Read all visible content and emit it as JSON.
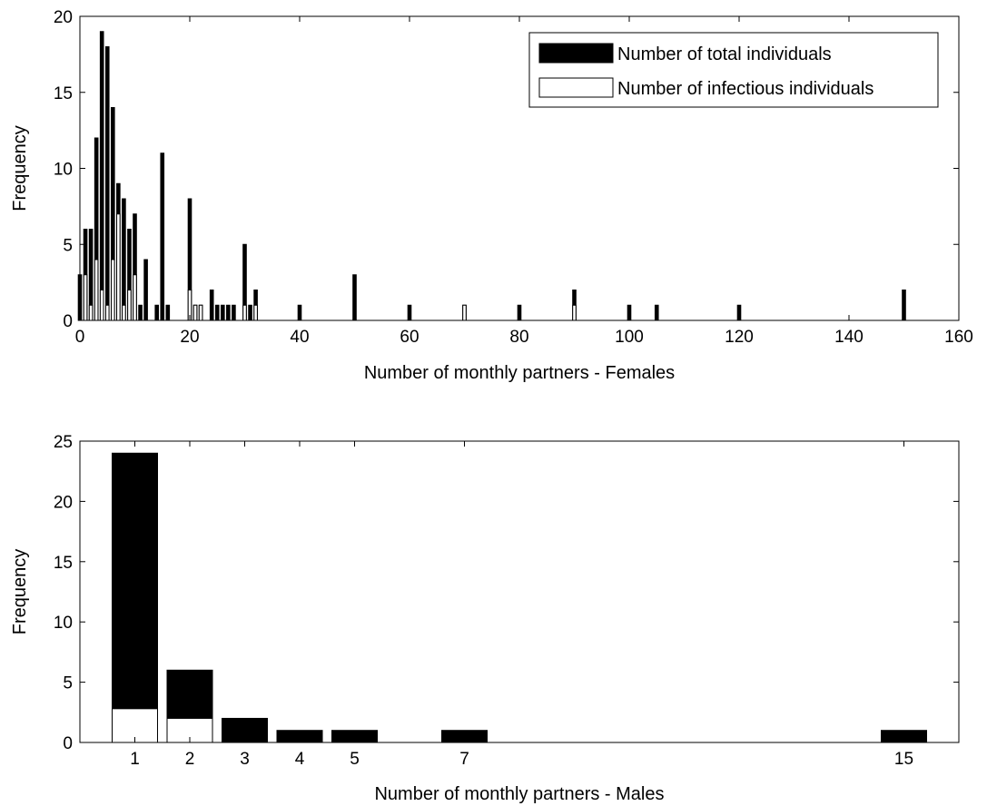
{
  "chart_data": [
    {
      "type": "bar",
      "title": "",
      "xlabel": "Number of monthly partners - Females",
      "ylabel": "Frequency",
      "xlim": [
        0,
        160
      ],
      "ylim": [
        0,
        20
      ],
      "xticks": [
        0,
        20,
        40,
        60,
        80,
        100,
        120,
        140,
        160
      ],
      "yticks": [
        0,
        5,
        10,
        15,
        20
      ],
      "grid": false,
      "legend_position": "top-right",
      "series": [
        {
          "name": "Number of total individuals",
          "color": "#000000",
          "x": [
            0,
            1,
            2,
            3,
            4,
            5,
            6,
            7,
            8,
            9,
            10,
            11,
            12,
            14,
            15,
            16,
            20,
            21,
            22,
            24,
            25,
            26,
            27,
            28,
            30,
            31,
            32,
            40,
            50,
            60,
            70,
            80,
            90,
            100,
            105,
            120,
            150
          ],
          "values": [
            3,
            6,
            6,
            12,
            19,
            18,
            14,
            9,
            8,
            6,
            7,
            1,
            4,
            1,
            11,
            1,
            8,
            1,
            1,
            2,
            1,
            1,
            1,
            1,
            5,
            1,
            2,
            1,
            3,
            1,
            1,
            1,
            2,
            1,
            1,
            1,
            2
          ]
        },
        {
          "name": "Number of infectious individuals",
          "color": "#ffffff",
          "x": [
            1,
            2,
            3,
            4,
            5,
            6,
            7,
            8,
            9,
            10,
            20,
            21,
            22,
            30,
            32,
            70,
            90
          ],
          "values": [
            3,
            1,
            4,
            2,
            1,
            4,
            7,
            1,
            2,
            3,
            2,
            1,
            1,
            1,
            1,
            1,
            1
          ]
        }
      ]
    },
    {
      "type": "bar",
      "title": "",
      "xlabel": "Number of monthly partners - Males",
      "ylabel": "Frequency",
      "xlim": [
        0,
        16
      ],
      "ylim": [
        0,
        25
      ],
      "xticks": [
        1,
        2,
        3,
        4,
        5,
        7,
        15
      ],
      "yticks": [
        0,
        5,
        10,
        15,
        20,
        25
      ],
      "grid": false,
      "series": [
        {
          "name": "Number of total individuals",
          "color": "#000000",
          "x": [
            1,
            2,
            3,
            4,
            5,
            7,
            15
          ],
          "values": [
            24,
            6,
            2,
            1,
            1,
            1,
            1
          ]
        },
        {
          "name": "Number of infectious individuals",
          "color": "#ffffff",
          "x": [
            1,
            2
          ],
          "values": [
            2.8,
            2
          ]
        }
      ]
    }
  ]
}
